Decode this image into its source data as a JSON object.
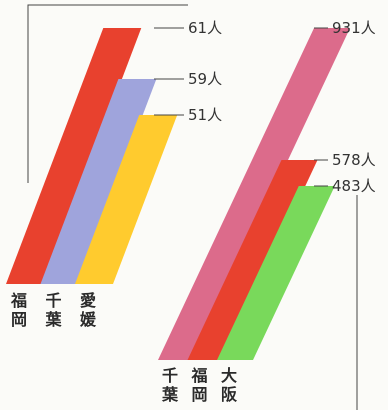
{
  "chart_data": [
    {
      "type": "bar",
      "categories": [
        "福岡",
        "千葉",
        "愛媛"
      ],
      "values": [
        61,
        59,
        51
      ],
      "labels": [
        "61人",
        "59人",
        "51人"
      ],
      "colors": [
        "#e8412e",
        "#9fa4dc",
        "#ffcb2e"
      ]
    },
    {
      "type": "bar",
      "categories": [
        "千葉",
        "福岡",
        "大阪"
      ],
      "values": [
        931,
        578,
        483
      ],
      "labels": [
        "931人",
        "578人",
        "483人"
      ],
      "colors": [
        "#dc6b8b",
        "#e8412e",
        "#79d95b"
      ]
    }
  ]
}
